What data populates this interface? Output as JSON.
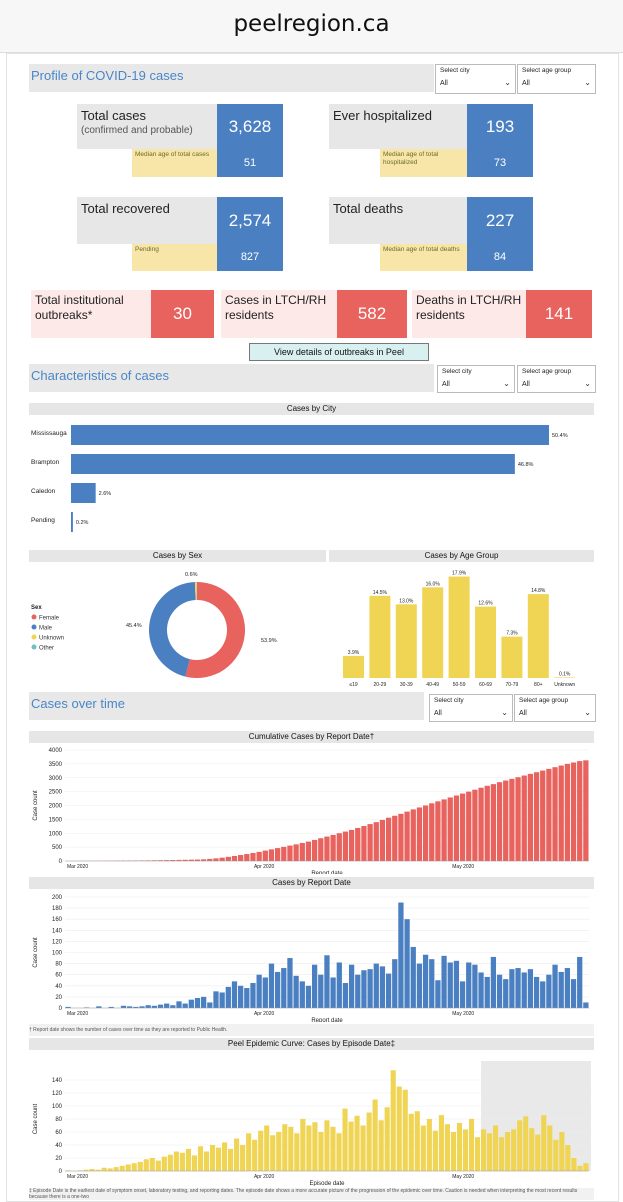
{
  "browser": {
    "url": "peelregion.ca"
  },
  "sections": {
    "profile": {
      "title": "Profile of COVID-19 cases"
    },
    "characteristics": {
      "title": "Characteristics of cases"
    },
    "over_time": {
      "title": "Cases over time"
    }
  },
  "slicers": {
    "city_label": "Select city",
    "age_label": "Select age group",
    "value": "All"
  },
  "kpis": {
    "total_cases": {
      "label": "Total cases",
      "sublabel": "(confirmed and probable)",
      "value": "3,628",
      "median_label": "Median age of total cases",
      "median_value": "51"
    },
    "ever_hospitalized": {
      "label": "Ever hospitalized",
      "value": "193",
      "median_label": "Median age of total hospitalized",
      "median_value": "73"
    },
    "total_recovered": {
      "label": "Total recovered",
      "value": "2,574",
      "pending_label": "Pending",
      "pending_value": "827"
    },
    "total_deaths": {
      "label": "Total deaths",
      "value": "227",
      "median_label": "Median age of total deaths",
      "median_value": "84"
    }
  },
  "institutional": {
    "outbreaks": {
      "label": "Total institutional outbreaks*",
      "value": "30"
    },
    "ltch_cases": {
      "label": "Cases in LTCH/RH residents",
      "value": "582"
    },
    "ltch_deaths": {
      "label": "Deaths in LTCH/RH residents",
      "value": "141"
    }
  },
  "outbreak_button": {
    "label": "View details of outbreaks in Peel"
  },
  "colors": {
    "blue": "#4a7fc1",
    "red": "#e8625e",
    "yellow": "#f0d454",
    "pink": "#fde9e7"
  },
  "chart_data": [
    {
      "type": "bar",
      "orientation": "horizontal",
      "title": "Cases by City",
      "categories": [
        "Mississauga",
        "Brampton",
        "Caledon",
        "Pending"
      ],
      "values": [
        50.4,
        46.8,
        2.6,
        0.2
      ],
      "value_labels": [
        "50.4%",
        "46.8%",
        "2.6%",
        "0.2%"
      ]
    },
    {
      "type": "pie",
      "title": "Cases by Sex",
      "legend_title": "Sex",
      "labels": [
        "Female",
        "Male",
        "Unknown",
        "Other"
      ],
      "values": [
        53.9,
        45.4,
        0.6,
        0.1
      ],
      "value_labels": [
        "53.9%",
        "45.4%",
        "0.6%",
        ""
      ],
      "colors": [
        "#e8625e",
        "#4a7fc1",
        "#f0d454",
        "#6dc0c8"
      ]
    },
    {
      "type": "bar",
      "title": "Cases by Age Group",
      "categories": [
        "≤19",
        "20-29",
        "30-39",
        "40-49",
        "50-59",
        "60-69",
        "70-79",
        "80+",
        "Unknown"
      ],
      "values": [
        3.9,
        14.5,
        13.0,
        16.0,
        17.9,
        12.6,
        7.3,
        14.8,
        0.1
      ],
      "value_labels": [
        "3.9%",
        "14.5%",
        "13.0%",
        "16.0%",
        "17.9%",
        "12.6%",
        "7.3%",
        "14.8%",
        "0.1%"
      ]
    },
    {
      "type": "bar",
      "title": "Cumulative Cases by Report Date†",
      "xlabel": "Report date",
      "ylabel": "Case count",
      "ylim": [
        0,
        4000
      ],
      "y_ticks": [
        "0",
        "500",
        "1000",
        "1500",
        "2000",
        "2500",
        "3000",
        "3500",
        "4000"
      ],
      "x_ticks": [
        "Mar 2020",
        "Apr 2020",
        "May 2020"
      ],
      "values": [
        1,
        2,
        3,
        4,
        5,
        6,
        8,
        10,
        12,
        14,
        16,
        18,
        20,
        22,
        25,
        28,
        32,
        36,
        40,
        44,
        48,
        52,
        60,
        75,
        95,
        120,
        150,
        180,
        215,
        250,
        290,
        330,
        375,
        420,
        465,
        510,
        555,
        600,
        650,
        700,
        760,
        820,
        880,
        940,
        1000,
        1060,
        1120,
        1190,
        1260,
        1330,
        1400,
        1480,
        1560,
        1630,
        1700,
        1780,
        1860,
        1930,
        2000,
        2080,
        2150,
        2220,
        2290,
        2360,
        2430,
        2500,
        2570,
        2640,
        2710,
        2770,
        2840,
        2900,
        2960,
        3020,
        3080,
        3140,
        3200,
        3260,
        3320,
        3380,
        3440,
        3500,
        3550,
        3600,
        3628
      ]
    },
    {
      "type": "bar",
      "title": "Cases by Report Date",
      "xlabel": "Report date",
      "ylabel": "Case count",
      "ylim": [
        0,
        200
      ],
      "y_ticks": [
        "0",
        "20",
        "40",
        "60",
        "80",
        "100",
        "120",
        "140",
        "160",
        "180",
        "200"
      ],
      "x_ticks": [
        "Mar 2020",
        "Apr 2020",
        "May 2020"
      ],
      "note": "† Report date shows the number of cases over time as they are reported to Public Health.",
      "values": [
        2,
        0,
        0,
        1,
        0,
        3,
        0,
        2,
        0,
        4,
        3,
        2,
        3,
        5,
        4,
        6,
        8,
        5,
        12,
        8,
        15,
        18,
        20,
        10,
        30,
        28,
        38,
        48,
        40,
        36,
        45,
        60,
        55,
        80,
        65,
        72,
        90,
        58,
        48,
        40,
        78,
        60,
        95,
        55,
        82,
        45,
        78,
        60,
        68,
        70,
        80,
        75,
        62,
        88,
        190,
        160,
        110,
        80,
        96,
        88,
        50,
        94,
        82,
        85,
        48,
        82,
        78,
        64,
        56,
        92,
        60,
        52,
        70,
        72,
        64,
        70,
        56,
        48,
        60,
        78,
        65,
        72,
        52,
        92,
        10
      ]
    },
    {
      "type": "bar",
      "title": "Peel Epidemic Curve: Cases by Episode Date‡",
      "xlabel": "Episode date",
      "ylabel": "Case count",
      "ylim": [
        0,
        160
      ],
      "y_ticks": [
        "0",
        "20",
        "40",
        "60",
        "80",
        "100",
        "120",
        "140"
      ],
      "x_ticks": [
        "Mar 2020",
        "Apr 2020",
        "May 2020"
      ],
      "note": "‡ Episode Date is the earliest date of symptom onset, laboratory testing, and reporting dates. The episode date shows a more accurate picture of the progression of the epidemic over time. Caution is needed when interpreting the most recent results because there is a one-two",
      "values": [
        1,
        0,
        1,
        2,
        3,
        2,
        5,
        4,
        6,
        8,
        10,
        12,
        14,
        18,
        20,
        16,
        22,
        25,
        30,
        28,
        34,
        24,
        38,
        30,
        40,
        36,
        44,
        34,
        50,
        40,
        58,
        48,
        62,
        70,
        55,
        60,
        72,
        68,
        58,
        80,
        70,
        75,
        60,
        78,
        68,
        58,
        96,
        76,
        85,
        70,
        90,
        110,
        78,
        98,
        155,
        130,
        125,
        88,
        92,
        70,
        80,
        62,
        86,
        72,
        60,
        74,
        64,
        80,
        52,
        64,
        58,
        70,
        52,
        60,
        64,
        78,
        84,
        66,
        56,
        86,
        70,
        48,
        60,
        40,
        20,
        8,
        12
      ]
    }
  ]
}
